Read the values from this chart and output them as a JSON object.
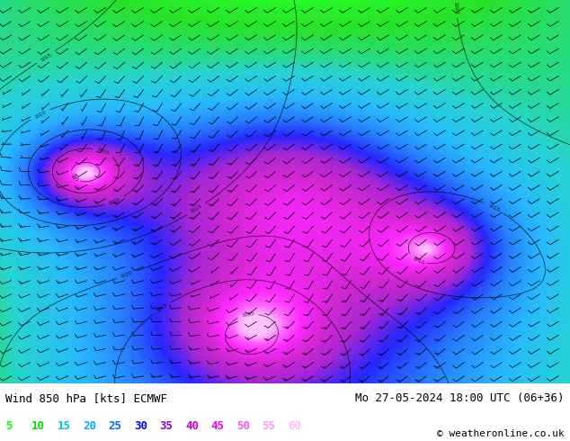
{
  "title_left": "Wind 850 hPa [kts] ECMWF",
  "title_right": "Mo 27-05-2024 18:00 UTC (06+36)",
  "copyright": "© weatheronline.co.uk",
  "legend_values": [
    5,
    10,
    15,
    20,
    25,
    30,
    35,
    40,
    45,
    50,
    55,
    60
  ],
  "legend_colors": [
    "#00ff00",
    "#00dd00",
    "#00cccc",
    "#00aaff",
    "#0066ff",
    "#0000ff",
    "#9900cc",
    "#cc00cc",
    "#ff00ff",
    "#ff55ff",
    "#ff99ff",
    "#ffbbff"
  ],
  "bg_color": "#ffffff",
  "map_image": "wind850_ecmwf_20240527_18utc.png",
  "figsize": [
    6.34,
    4.9
  ],
  "dpi": 100,
  "text_color": "#000000",
  "font_family": "monospace"
}
